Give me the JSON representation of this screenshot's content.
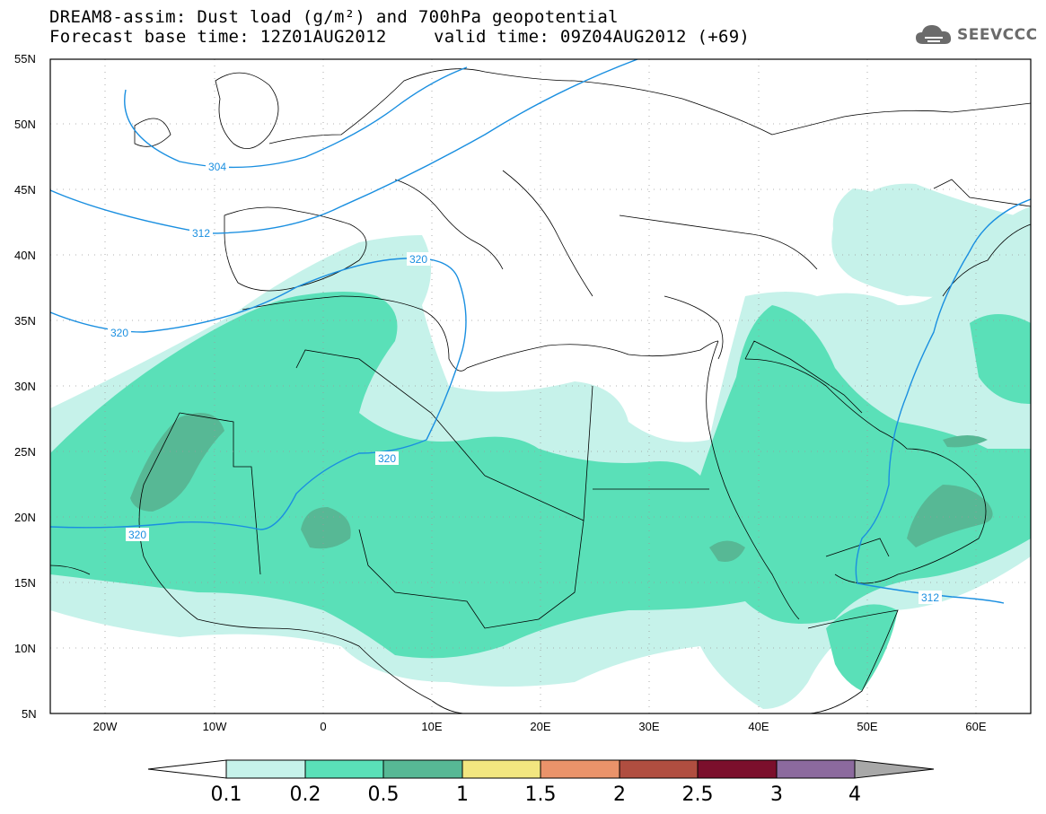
{
  "header": {
    "title_line1": "DREAM8-assim: Dust load (g/m²) and 700hPa geopotential",
    "title_line2_base": "Forecast base time: 12Z01AUG2012",
    "title_line2_valid": "valid time: 09Z04AUG2012 (+69)",
    "logo_text": "SEEVCCC",
    "logo_icon": "cloud-icon"
  },
  "axes": {
    "lat_labels": [
      "55N",
      "50N",
      "45N",
      "40N",
      "35N",
      "30N",
      "25N",
      "20N",
      "15N",
      "10N",
      "5N"
    ],
    "lon_labels": [
      "20W",
      "10W",
      "0",
      "10E",
      "20E",
      "30E",
      "40E",
      "50E",
      "60E"
    ]
  },
  "contours": {
    "color": "#1a8fe0",
    "labels": [
      "304",
      "312",
      "320",
      "320",
      "320",
      "320",
      "312"
    ]
  },
  "colorbar": {
    "ticks": [
      "0.1",
      "0.2",
      "0.5",
      "1",
      "1.5",
      "2",
      "2.5",
      "3",
      "4"
    ],
    "colors": [
      "#ffffff",
      "#c6f2ea",
      "#5ae0b8",
      "#57b895",
      "#f2e680",
      "#ea936a",
      "#b04e40",
      "#7b0f2c",
      "#8c6a9e",
      "#a8a8a8"
    ]
  },
  "map_colors": {
    "land_bg": "#ffffff",
    "dust_0_1": "#c6f2ea",
    "dust_0_2": "#5ae0b8",
    "dust_0_5": "#57b895",
    "border": "#000000"
  }
}
